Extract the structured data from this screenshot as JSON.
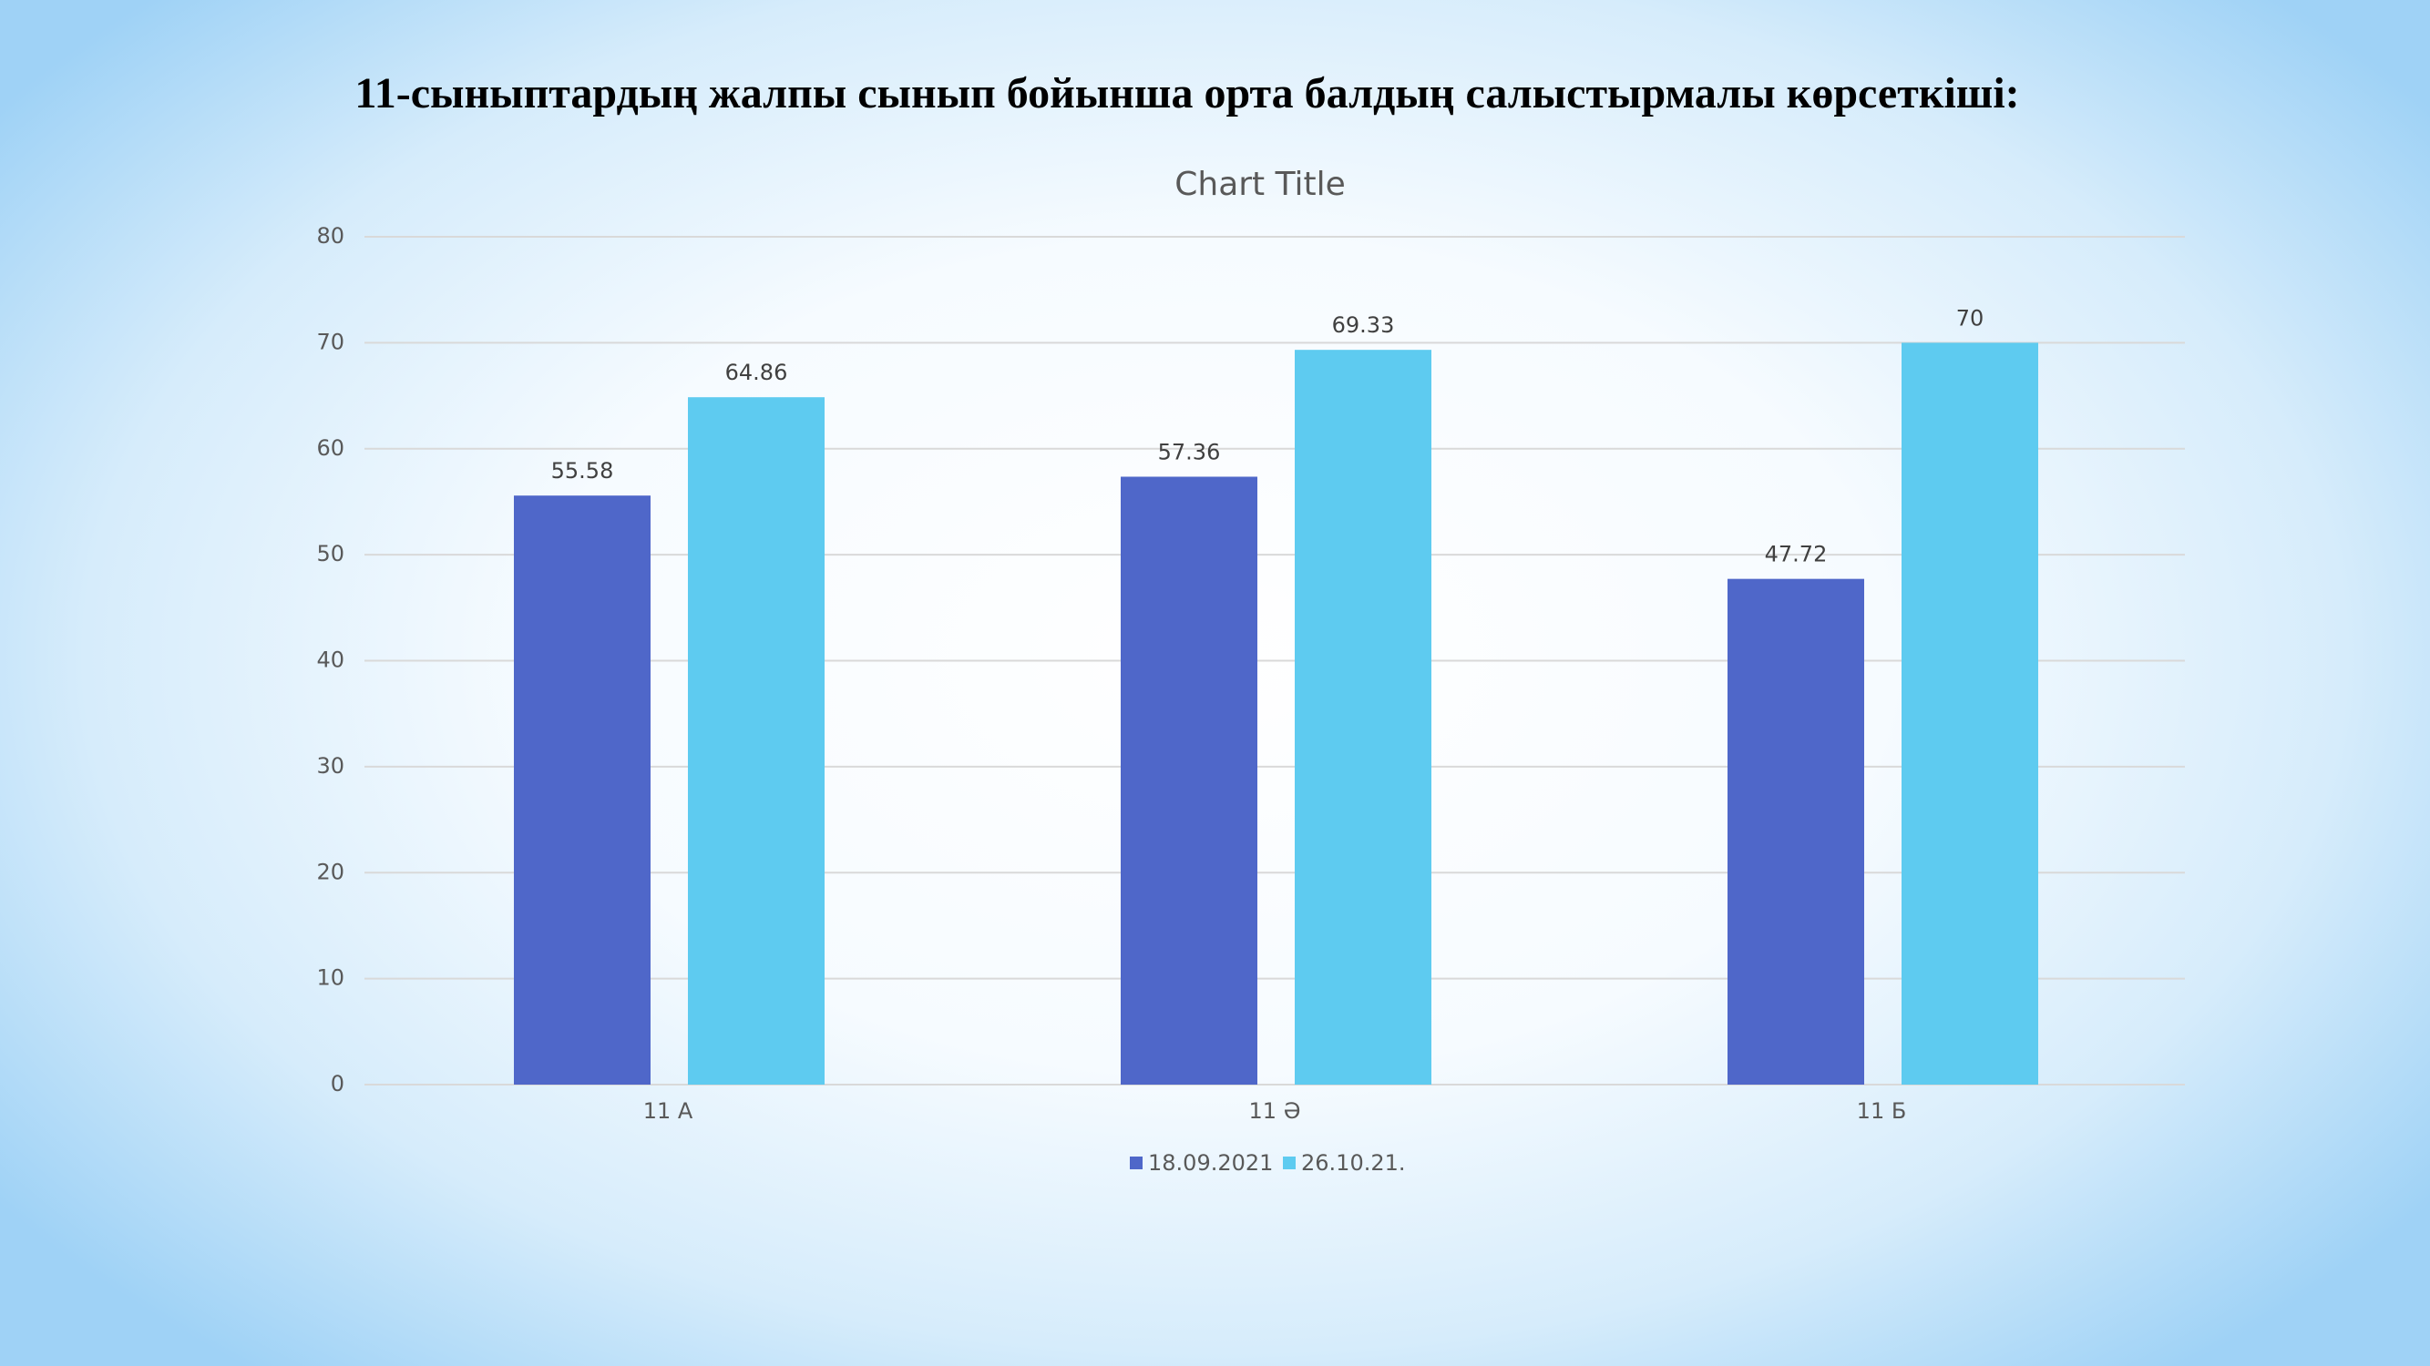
{
  "slide_title": "11-сыныптардың  жалпы сынып бойынша орта  балдың салыстырмалы көрсеткіші:",
  "chart_data": {
    "type": "bar",
    "title": "Chart Title",
    "categories": [
      "11 А",
      "11 Ә",
      "11 Б"
    ],
    "series": [
      {
        "name": "18.09.2021",
        "color": "#4f67c9",
        "values": [
          55.58,
          57.36,
          47.72
        ]
      },
      {
        "name": "26.10.21.",
        "color": "#5ecbf0",
        "values": [
          64.86,
          69.33,
          70
        ]
      }
    ],
    "ylim": [
      0,
      80
    ],
    "yticks": [
      0,
      10,
      20,
      30,
      40,
      50,
      60,
      70,
      80
    ],
    "grid": true,
    "legend": "bottom"
  }
}
